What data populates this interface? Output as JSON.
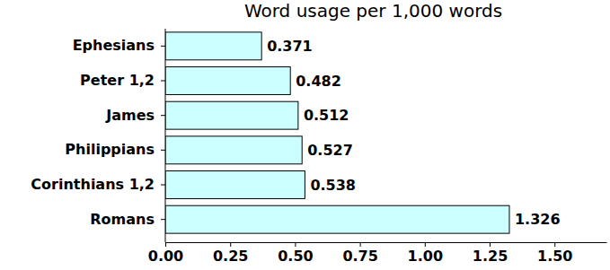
{
  "chart_data": {
    "type": "bar",
    "orientation": "horizontal",
    "title": "Word usage per 1,000 words",
    "categories": [
      "Ephesians",
      "Peter 1,2",
      "James",
      "Philippians",
      "Corinthians 1,2",
      "Romans"
    ],
    "values": [
      0.371,
      0.482,
      0.512,
      0.527,
      0.538,
      1.326
    ],
    "color": "#ccffff",
    "data_labels": true,
    "grid": false,
    "xlim": [
      0,
      1.7
    ],
    "xticks": [
      {
        "value": 0,
        "label": "0.00"
      },
      {
        "value": 0.25,
        "label": "0.25"
      },
      {
        "value": 0.5,
        "label": "0.50"
      },
      {
        "value": 0.75,
        "label": "0.75"
      },
      {
        "value": 1,
        "label": "1.00"
      },
      {
        "value": 1.25,
        "label": "1.25"
      },
      {
        "value": 1.5,
        "label": "1.50"
      }
    ]
  }
}
